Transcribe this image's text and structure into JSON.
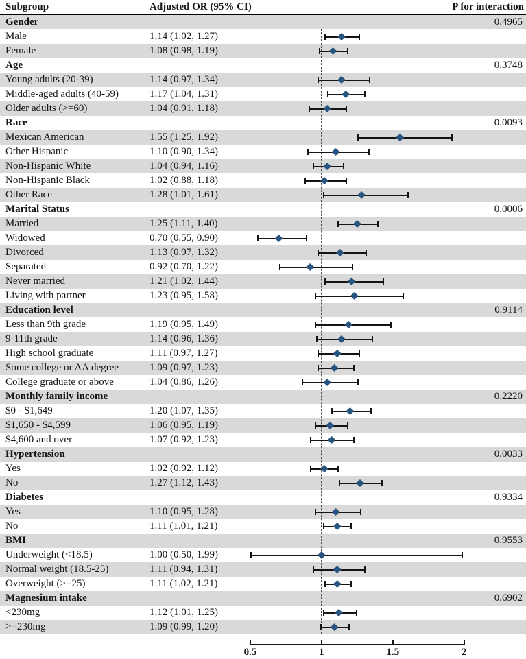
{
  "columns": {
    "subgroup": "Subgroup",
    "or": "Adjusted OR (95% CI)",
    "p": "P for interaction"
  },
  "colors": {
    "diamond": "#29547e",
    "row_shade": "#d9d9d9",
    "line": "#141414",
    "reference_line": "#4b4b4b"
  },
  "chart_data": {
    "type": "scatter",
    "variant": "forest-plot (horizontal odds-ratio CIs with diamond point estimates)",
    "x_axis": {
      "range": [
        0.5,
        2.0
      ],
      "ticks": [
        0.5,
        1,
        1.5,
        2
      ],
      "tick_labels": [
        "0.5",
        "1",
        "1.5",
        "2"
      ],
      "reference_line": 1,
      "scale": "linear"
    },
    "legend": "none",
    "sections": [
      {
        "name": "Gender",
        "p_interaction": "0.4965",
        "items": [
          {
            "label": "Male",
            "ci_text": "1.14 (1.02, 1.27)",
            "or": 1.14,
            "low": 1.02,
            "high": 1.27
          },
          {
            "label": "Female",
            "ci_text": "1.08 (0.98, 1.19)",
            "or": 1.08,
            "low": 0.98,
            "high": 1.19
          }
        ]
      },
      {
        "name": "Age",
        "p_interaction": "0.3748",
        "items": [
          {
            "label": "Young adults (20-39)",
            "ci_text": "1.14 (0.97, 1.34)",
            "or": 1.14,
            "low": 0.97,
            "high": 1.34
          },
          {
            "label": "Middle-aged adults (40-59)",
            "ci_text": "1.17 (1.04, 1.31)",
            "or": 1.17,
            "low": 1.04,
            "high": 1.31
          },
          {
            "label": "Older adults (>=60)",
            "ci_text": "1.04 (0.91, 1.18)",
            "or": 1.04,
            "low": 0.91,
            "high": 1.18
          }
        ]
      },
      {
        "name": "Race",
        "p_interaction": "0.0093",
        "items": [
          {
            "label": "Mexican American",
            "ci_text": "1.55 (1.25, 1.92)",
            "or": 1.55,
            "low": 1.25,
            "high": 1.92
          },
          {
            "label": "Other Hispanic",
            "ci_text": "1.10 (0.90, 1.34)",
            "or": 1.1,
            "low": 0.9,
            "high": 1.34
          },
          {
            "label": "Non-Hispanic White",
            "ci_text": "1.04 (0.94, 1.16)",
            "or": 1.04,
            "low": 0.94,
            "high": 1.16
          },
          {
            "label": "Non-Hispanic Black",
            "ci_text": "1.02 (0.88, 1.18)",
            "or": 1.02,
            "low": 0.88,
            "high": 1.18
          },
          {
            "label": "Other Race",
            "ci_text": "1.28 (1.01, 1.61)",
            "or": 1.28,
            "low": 1.01,
            "high": 1.61
          }
        ]
      },
      {
        "name": "Marital Status",
        "p_interaction": "0.0006",
        "items": [
          {
            "label": "Married",
            "ci_text": "1.25 (1.11, 1.40)",
            "or": 1.25,
            "low": 1.11,
            "high": 1.4
          },
          {
            "label": "Widowed",
            "ci_text": "0.70 (0.55, 0.90)",
            "or": 0.7,
            "low": 0.55,
            "high": 0.9
          },
          {
            "label": "Divorced",
            "ci_text": "1.13 (0.97, 1.32)",
            "or": 1.13,
            "low": 0.97,
            "high": 1.32
          },
          {
            "label": "Separated",
            "ci_text": "0.92 (0.70, 1.22)",
            "or": 0.92,
            "low": 0.7,
            "high": 1.22
          },
          {
            "label": "Never married",
            "ci_text": "1.21 (1.02, 1.44)",
            "or": 1.21,
            "low": 1.02,
            "high": 1.44
          },
          {
            "label": "Living with partner",
            "ci_text": "1.23 (0.95, 1.58)",
            "or": 1.23,
            "low": 0.95,
            "high": 1.58
          }
        ]
      },
      {
        "name": "Education level",
        "p_interaction": "0.9114",
        "items": [
          {
            "label": "Less than 9th grade",
            "ci_text": "1.19 (0.95, 1.49)",
            "or": 1.19,
            "low": 0.95,
            "high": 1.49
          },
          {
            "label": "9-11th grade",
            "ci_text": "1.14 (0.96, 1.36)",
            "or": 1.14,
            "low": 0.96,
            "high": 1.36
          },
          {
            "label": "High school graduate",
            "ci_text": "1.11 (0.97, 1.27)",
            "or": 1.11,
            "low": 0.97,
            "high": 1.27
          },
          {
            "label": "Some college or AA degree",
            "ci_text": "1.09 (0.97, 1.23)",
            "or": 1.09,
            "low": 0.97,
            "high": 1.23
          },
          {
            "label": "College graduate or above",
            "ci_text": "1.04 (0.86, 1.26)",
            "or": 1.04,
            "low": 0.86,
            "high": 1.26
          }
        ]
      },
      {
        "name": "Monthly family income",
        "p_interaction": "0.2220",
        "items": [
          {
            "label": "$0 - $1,649",
            "ci_text": "1.20 (1.07, 1.35)",
            "or": 1.2,
            "low": 1.07,
            "high": 1.35
          },
          {
            "label": "$1,650 - $4,599",
            "ci_text": "1.06 (0.95, 1.19)",
            "or": 1.06,
            "low": 0.95,
            "high": 1.19
          },
          {
            "label": "$4,600 and over",
            "ci_text": "1.07 (0.92, 1.23)",
            "or": 1.07,
            "low": 0.92,
            "high": 1.23
          }
        ]
      },
      {
        "name": "Hypertension",
        "p_interaction": "0.0033",
        "items": [
          {
            "label": "Yes",
            "ci_text": "1.02 (0.92, 1.12)",
            "or": 1.02,
            "low": 0.92,
            "high": 1.12
          },
          {
            "label": "No",
            "ci_text": "1.27 (1.12, 1.43)",
            "or": 1.27,
            "low": 1.12,
            "high": 1.43
          }
        ]
      },
      {
        "name": "Diabetes",
        "p_interaction": "0.9334",
        "items": [
          {
            "label": "Yes",
            "ci_text": "1.10 (0.95, 1.28)",
            "or": 1.1,
            "low": 0.95,
            "high": 1.28
          },
          {
            "label": "No",
            "ci_text": "1.11 (1.01, 1.21)",
            "or": 1.11,
            "low": 1.01,
            "high": 1.21
          }
        ]
      },
      {
        "name": "BMI",
        "p_interaction": "0.9553",
        "items": [
          {
            "label": "Underweight (<18.5)",
            "ci_text": "1.00 (0.50, 1.99)",
            "or": 1.0,
            "low": 0.5,
            "high": 1.99
          },
          {
            "label": "Normal weight (18.5-25)",
            "ci_text": "1.11 (0.94, 1.31)",
            "or": 1.11,
            "low": 0.94,
            "high": 1.31
          },
          {
            "label": "Overweight (>=25)",
            "ci_text": "1.11 (1.02, 1.21)",
            "or": 1.11,
            "low": 1.02,
            "high": 1.21
          }
        ]
      },
      {
        "name": "Magnesium intake",
        "p_interaction": "0.6902",
        "items": [
          {
            "label": "<230mg",
            "ci_text": "1.12 (1.01, 1.25)",
            "or": 1.12,
            "low": 1.01,
            "high": 1.25
          },
          {
            "label": ">=230mg",
            "ci_text": "1.09 (0.99, 1.20)",
            "or": 1.09,
            "low": 0.99,
            "high": 1.2
          }
        ]
      }
    ]
  }
}
